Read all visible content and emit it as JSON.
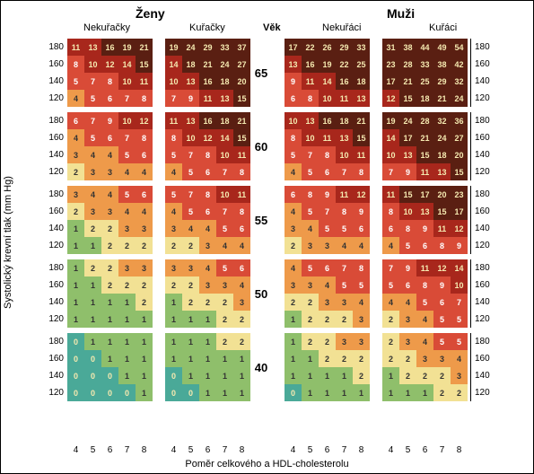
{
  "labels": {
    "women": "Ženy",
    "men": "Muži",
    "age": "Věk",
    "nonsmoker_f": "Nekuřačky",
    "smoker_f": "Kuřačky",
    "nonsmoker_m": "Nekuřáci",
    "smoker_m": "Kuřáci",
    "yaxis": "Systolický krevní tlak (mm Hg)",
    "xaxis": "Poměr celkového a HDL-cholesterolu"
  },
  "sbp": [
    180,
    160,
    140,
    120
  ],
  "chol": [
    4,
    5,
    6,
    7,
    8
  ],
  "ages": [
    65,
    60,
    55,
    50,
    40
  ],
  "colors": {
    "darkbrown": "#5a1f12",
    "darkred": "#a8271c",
    "red": "#d94b37",
    "orange": "#ee9a4a",
    "yellow": "#f2e194",
    "green": "#8fbf6b",
    "teal": "#4aa998"
  },
  "text_colors": {
    "light": "#f5e9b0",
    "white": "#ffffff",
    "dark": "#333333"
  },
  "thresholds": {
    "darkbrown_min": 15,
    "darkred_min": 10,
    "red_min": 5,
    "orange_min": 3,
    "yellow_min": 2,
    "green_min": 1
  },
  "data": {
    "65": {
      "f_ns": [
        [
          11,
          13,
          16,
          19,
          21
        ],
        [
          8,
          10,
          12,
          14,
          15
        ],
        [
          5,
          7,
          8,
          10,
          11
        ],
        [
          4,
          5,
          6,
          7,
          8
        ]
      ],
      "f_s": [
        [
          19,
          24,
          29,
          33,
          37
        ],
        [
          14,
          18,
          21,
          24,
          27
        ],
        [
          10,
          13,
          16,
          18,
          20
        ],
        [
          7,
          9,
          11,
          13,
          15
        ]
      ],
      "m_ns": [
        [
          17,
          22,
          26,
          29,
          33
        ],
        [
          13,
          16,
          19,
          22,
          25
        ],
        [
          9,
          11,
          14,
          16,
          18
        ],
        [
          6,
          8,
          10,
          11,
          13
        ]
      ],
      "m_s": [
        [
          31,
          38,
          44,
          49,
          54
        ],
        [
          23,
          28,
          33,
          38,
          42
        ],
        [
          17,
          21,
          25,
          29,
          32
        ],
        [
          12,
          15,
          18,
          21,
          24
        ]
      ]
    },
    "60": {
      "f_ns": [
        [
          6,
          7,
          9,
          10,
          12
        ],
        [
          4,
          5,
          6,
          7,
          8
        ],
        [
          3,
          4,
          4,
          5,
          6
        ],
        [
          2,
          3,
          3,
          4,
          4
        ]
      ],
      "f_s": [
        [
          11,
          13,
          16,
          18,
          21
        ],
        [
          8,
          10,
          12,
          14,
          15
        ],
        [
          5,
          7,
          8,
          10,
          11
        ],
        [
          4,
          5,
          6,
          7,
          8
        ]
      ],
      "m_ns": [
        [
          10,
          13,
          16,
          18,
          21
        ],
        [
          8,
          10,
          11,
          13,
          15
        ],
        [
          5,
          7,
          8,
          10,
          11
        ],
        [
          4,
          5,
          6,
          7,
          8
        ]
      ],
      "m_s": [
        [
          19,
          24,
          28,
          32,
          36
        ],
        [
          14,
          17,
          21,
          24,
          27
        ],
        [
          10,
          13,
          15,
          18,
          20
        ],
        [
          7,
          9,
          11,
          13,
          15
        ]
      ]
    },
    "55": {
      "f_ns": [
        [
          3,
          4,
          4,
          5,
          6
        ],
        [
          2,
          3,
          3,
          4,
          4
        ],
        [
          1,
          2,
          2,
          3,
          3
        ],
        [
          1,
          1,
          2,
          2,
          2
        ]
      ],
      "f_s": [
        [
          5,
          7,
          8,
          10,
          11
        ],
        [
          4,
          5,
          6,
          7,
          8
        ],
        [
          3,
          4,
          4,
          5,
          6
        ],
        [
          2,
          2,
          3,
          4,
          4
        ]
      ],
      "m_ns": [
        [
          6,
          8,
          9,
          11,
          12
        ],
        [
          4,
          5,
          7,
          8,
          9
        ],
        [
          3,
          4,
          5,
          5,
          6
        ],
        [
          2,
          3,
          3,
          4,
          4
        ]
      ],
      "m_s": [
        [
          11,
          15,
          17,
          20,
          23
        ],
        [
          8,
          10,
          13,
          15,
          17
        ],
        [
          6,
          8,
          9,
          11,
          12
        ],
        [
          4,
          5,
          6,
          8,
          9
        ]
      ]
    },
    "50": {
      "f_ns": [
        [
          1,
          2,
          2,
          3,
          3
        ],
        [
          1,
          1,
          2,
          2,
          2
        ],
        [
          1,
          1,
          1,
          1,
          2
        ],
        [
          1,
          1,
          1,
          1,
          1
        ]
      ],
      "f_s": [
        [
          3,
          3,
          4,
          5,
          6
        ],
        [
          2,
          2,
          3,
          3,
          4
        ],
        [
          1,
          2,
          2,
          2,
          3
        ],
        [
          1,
          1,
          1,
          2,
          2
        ]
      ],
      "m_ns": [
        [
          4,
          5,
          6,
          7,
          8
        ],
        [
          3,
          3,
          4,
          5,
          5
        ],
        [
          2,
          2,
          3,
          3,
          4
        ],
        [
          1,
          2,
          2,
          2,
          3
        ]
      ],
      "m_s": [
        [
          7,
          9,
          11,
          12,
          14
        ],
        [
          5,
          6,
          8,
          9,
          10
        ],
        [
          4,
          4,
          5,
          6,
          7
        ],
        [
          2,
          3,
          4,
          5,
          5
        ]
      ]
    },
    "40": {
      "f_ns": [
        [
          0,
          1,
          1,
          1,
          1
        ],
        [
          0,
          0,
          1,
          1,
          1
        ],
        [
          0,
          0,
          0,
          1,
          1
        ],
        [
          0,
          0,
          0,
          0,
          1
        ]
      ],
      "f_s": [
        [
          1,
          1,
          1,
          2,
          2
        ],
        [
          1,
          1,
          1,
          1,
          1
        ],
        [
          0,
          1,
          1,
          1,
          1
        ],
        [
          0,
          0,
          1,
          1,
          1
        ]
      ],
      "m_ns": [
        [
          1,
          2,
          2,
          3,
          3
        ],
        [
          1,
          1,
          2,
          2,
          2
        ],
        [
          1,
          1,
          1,
          1,
          2
        ],
        [
          0,
          1,
          1,
          1,
          1
        ]
      ],
      "m_s": [
        [
          2,
          3,
          4,
          5,
          5
        ],
        [
          2,
          2,
          3,
          3,
          4
        ],
        [
          1,
          2,
          2,
          2,
          3
        ],
        [
          1,
          1,
          1,
          2,
          2
        ]
      ]
    }
  }
}
